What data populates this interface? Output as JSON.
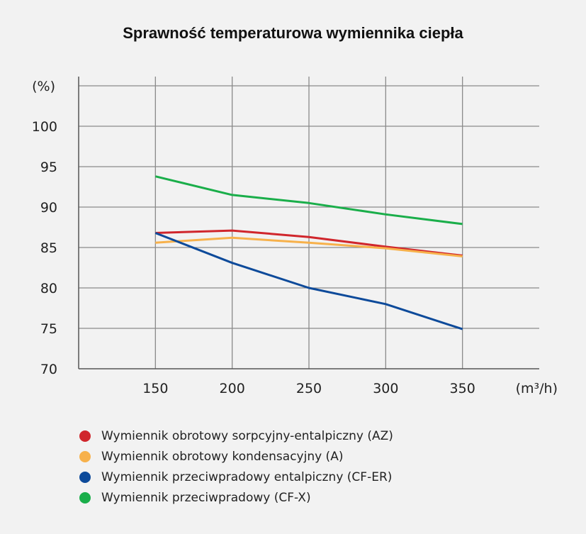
{
  "chart_data": {
    "type": "line",
    "title": "Sprawność temperaturowa wymiennika ciepła",
    "ylabel": "(%)",
    "xlabel": "(m³/h)",
    "x": [
      150,
      200,
      250,
      300,
      350
    ],
    "xlim": [
      100,
      400
    ],
    "ylim": [
      70,
      105
    ],
    "yticks": [
      70,
      75,
      80,
      85,
      90,
      95,
      100
    ],
    "xticks": [
      150,
      200,
      250,
      300,
      350
    ],
    "grid": true,
    "legend_position": "bottom",
    "series": [
      {
        "name": "Wymiennik obrotowy sorpcyjny-entalpiczny (AZ)",
        "color": "#d0262c",
        "values": [
          86.8,
          87.1,
          86.3,
          85.1,
          84.0
        ]
      },
      {
        "name": "Wymiennik obrotowy kondensacyjny (A)",
        "color": "#f7b14b",
        "values": [
          85.6,
          86.2,
          85.6,
          84.9,
          83.9
        ]
      },
      {
        "name": "Wymiennik przeciwpradowy entalpiczny (CF-ER)",
        "color": "#0d4a9a",
        "values": [
          86.8,
          83.1,
          80.0,
          78.0,
          74.9
        ]
      },
      {
        "name": "Wymiennik przeciwpradowy (CF-X)",
        "color": "#1aae4a",
        "values": [
          93.8,
          91.5,
          90.5,
          89.1,
          87.9
        ]
      }
    ]
  }
}
